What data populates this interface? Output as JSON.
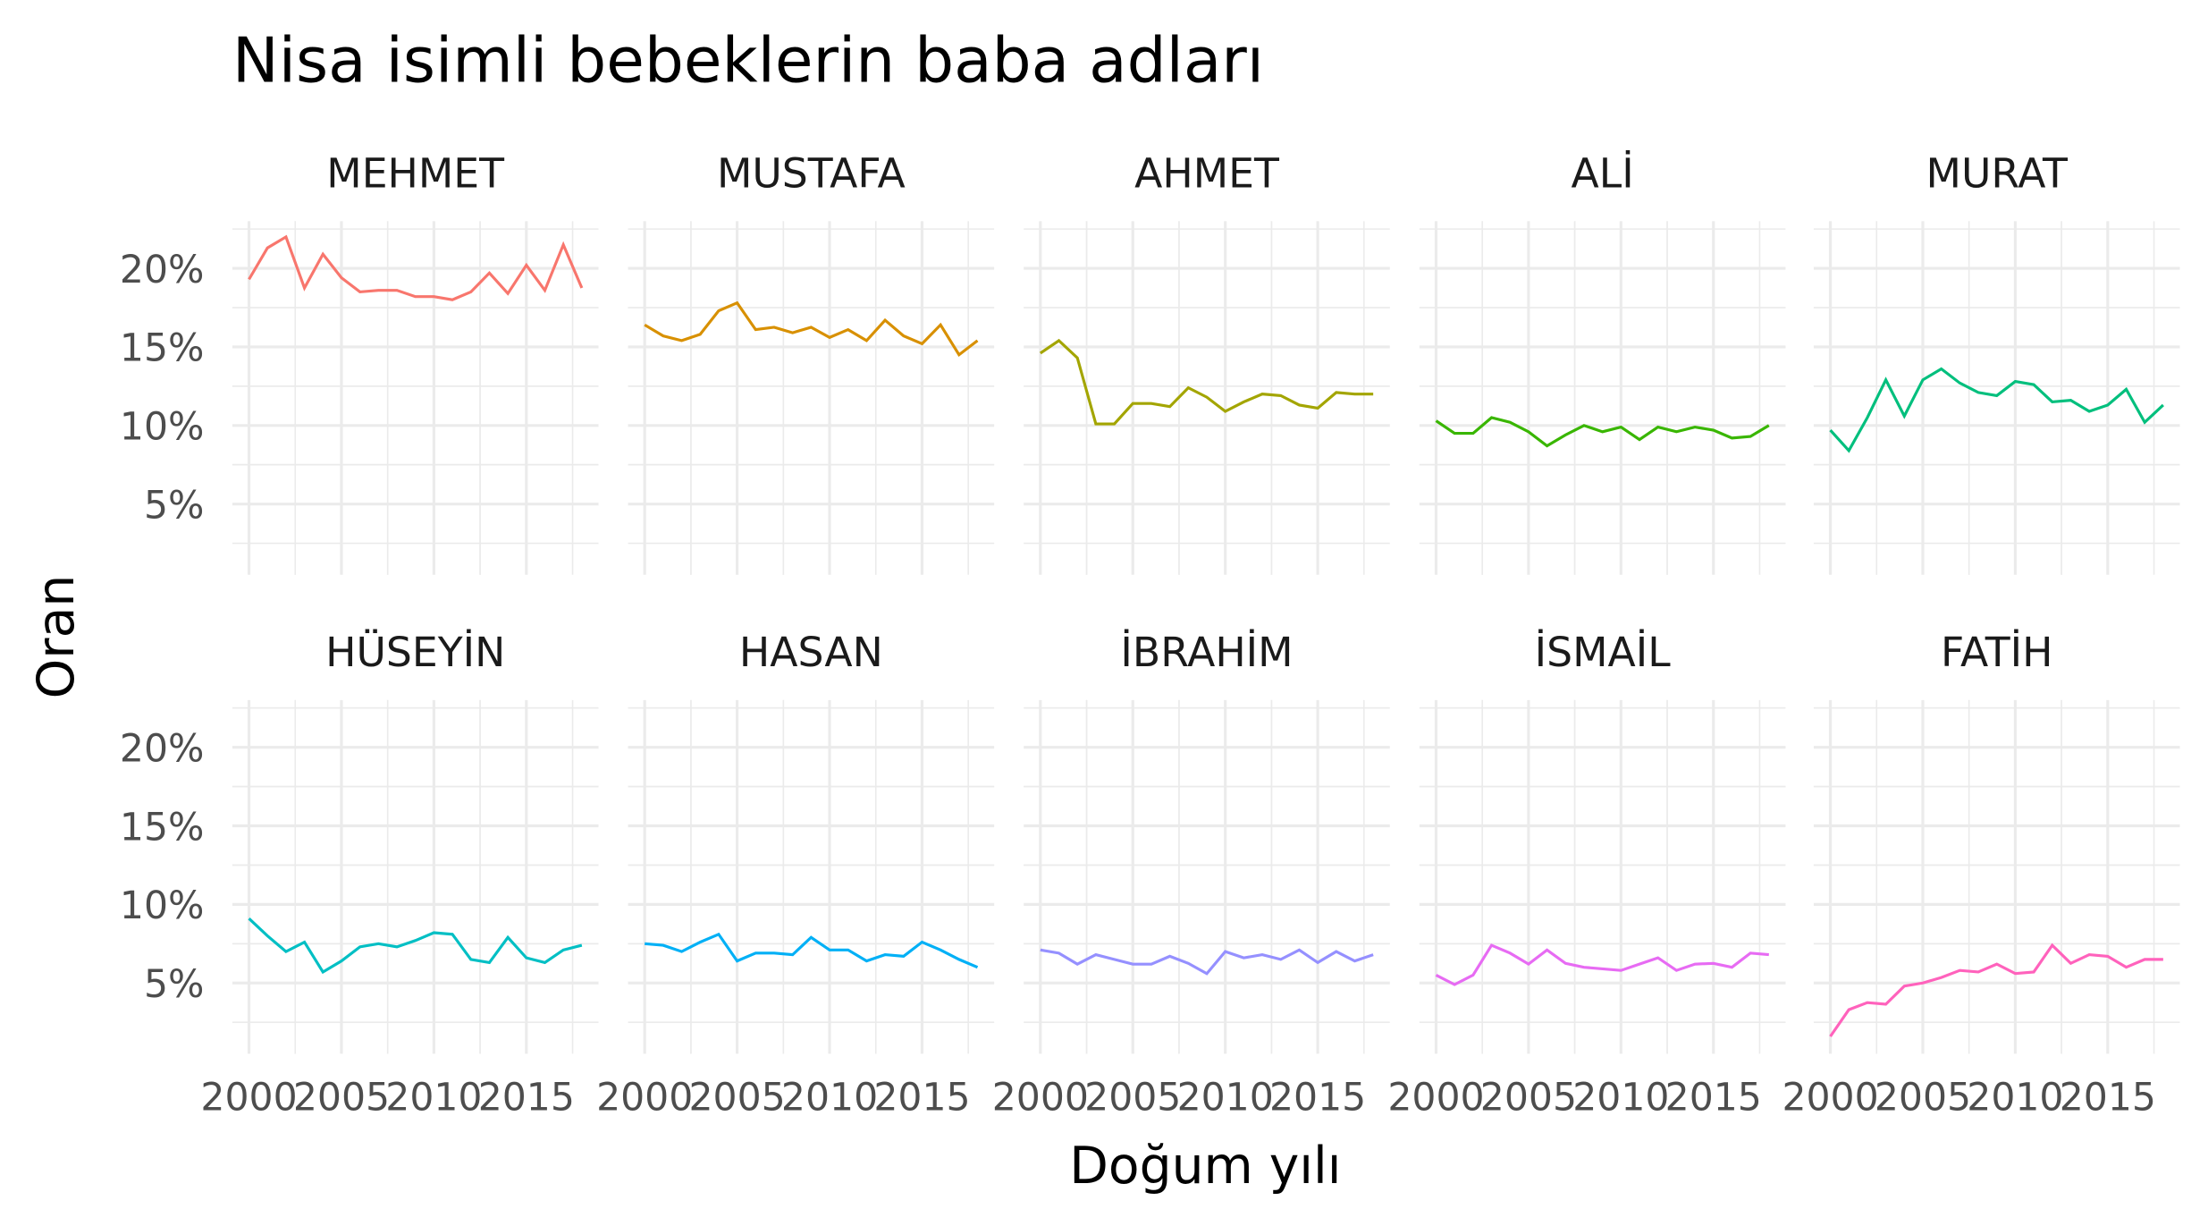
{
  "chart_data": {
    "type": "line",
    "title": "Nisa isimli bebeklerin baba adları",
    "x_label": "Doğum yılı",
    "y_label": "Oran",
    "x": [
      2000,
      2001,
      2002,
      2003,
      2004,
      2005,
      2006,
      2007,
      2008,
      2009,
      2010,
      2011,
      2012,
      2013,
      2014,
      2015,
      2016,
      2017,
      2018
    ],
    "xlim": [
      1999.1,
      2018.9
    ],
    "xticks": [
      2000,
      2005,
      2010,
      2015
    ],
    "ylim": [
      0.5,
      23
    ],
    "yticks": [
      {
        "value": 5,
        "label": "5%"
      },
      {
        "value": 10,
        "label": "10%"
      },
      {
        "value": 15,
        "label": "15%"
      },
      {
        "value": 20,
        "label": "20%"
      }
    ],
    "grid": true,
    "facets": [
      {
        "name": "MEHMET",
        "color": "#F8766D",
        "values": [
          19.3,
          21.3,
          22.0,
          18.75,
          20.9,
          19.4,
          18.5,
          18.6,
          18.6,
          18.2,
          18.2,
          18.0,
          18.5,
          19.7,
          18.4,
          20.2,
          18.6,
          21.5,
          18.75
        ]
      },
      {
        "name": "MUSTAFA",
        "color": "#D89000",
        "values": [
          16.4,
          15.7,
          15.4,
          15.8,
          17.3,
          17.8,
          16.1,
          16.25,
          15.9,
          16.25,
          15.6,
          16.1,
          15.4,
          16.7,
          15.7,
          15.2,
          16.4,
          14.5,
          15.4
        ]
      },
      {
        "name": "AHMET",
        "color": "#A3A500",
        "values": [
          14.6,
          15.4,
          14.3,
          10.1,
          10.1,
          11.4,
          11.4,
          11.2,
          12.4,
          11.8,
          10.9,
          11.5,
          12.0,
          11.9,
          11.3,
          11.1,
          12.1,
          12.0,
          12.0
        ]
      },
      {
        "name": "ALİ",
        "color": "#39B600",
        "values": [
          10.3,
          9.5,
          9.5,
          10.5,
          10.2,
          9.6,
          8.7,
          9.4,
          10.0,
          9.6,
          9.9,
          9.1,
          9.9,
          9.6,
          9.9,
          9.7,
          9.2,
          9.3,
          10.0
        ]
      },
      {
        "name": "MURAT",
        "color": "#00BF7D",
        "values": [
          9.7,
          8.4,
          10.5,
          12.9,
          10.6,
          12.9,
          13.6,
          12.7,
          12.1,
          11.9,
          12.8,
          12.6,
          11.5,
          11.6,
          10.9,
          11.3,
          12.3,
          10.2,
          11.3
        ]
      },
      {
        "name": "HÜSEYİN",
        "color": "#00BFC4",
        "values": [
          9.1,
          8.0,
          7.0,
          7.6,
          5.7,
          6.4,
          7.3,
          7.5,
          7.3,
          7.7,
          8.2,
          8.1,
          6.5,
          6.3,
          7.9,
          6.6,
          6.3,
          7.1,
          7.4
        ]
      },
      {
        "name": "HASAN",
        "color": "#00B0F6",
        "values": [
          7.5,
          7.4,
          7.0,
          7.6,
          8.1,
          6.4,
          6.9,
          6.9,
          6.8,
          7.9,
          7.1,
          7.1,
          6.4,
          6.8,
          6.7,
          7.6,
          7.1,
          6.5,
          6.0
        ]
      },
      {
        "name": "İBRAHİM",
        "color": "#9590FF",
        "values": [
          7.1,
          6.9,
          6.2,
          6.8,
          6.5,
          6.2,
          6.2,
          6.7,
          6.25,
          5.6,
          7.0,
          6.6,
          6.8,
          6.5,
          7.1,
          6.3,
          7.0,
          6.4,
          6.8
        ]
      },
      {
        "name": "İSMAİL",
        "color": "#E76BF3",
        "values": [
          5.5,
          4.9,
          5.5,
          7.4,
          6.9,
          6.2,
          7.1,
          6.25,
          6.0,
          5.9,
          5.8,
          6.2,
          6.6,
          5.8,
          6.2,
          6.25,
          6.0,
          6.9,
          6.8
        ]
      },
      {
        "name": "FATİH",
        "color": "#FF62BC",
        "values": [
          1.6,
          3.3,
          3.75,
          3.65,
          4.8,
          5.0,
          5.35,
          5.8,
          5.7,
          6.2,
          5.6,
          5.7,
          7.4,
          6.25,
          6.8,
          6.7,
          6.0,
          6.5,
          6.5
        ]
      }
    ]
  }
}
